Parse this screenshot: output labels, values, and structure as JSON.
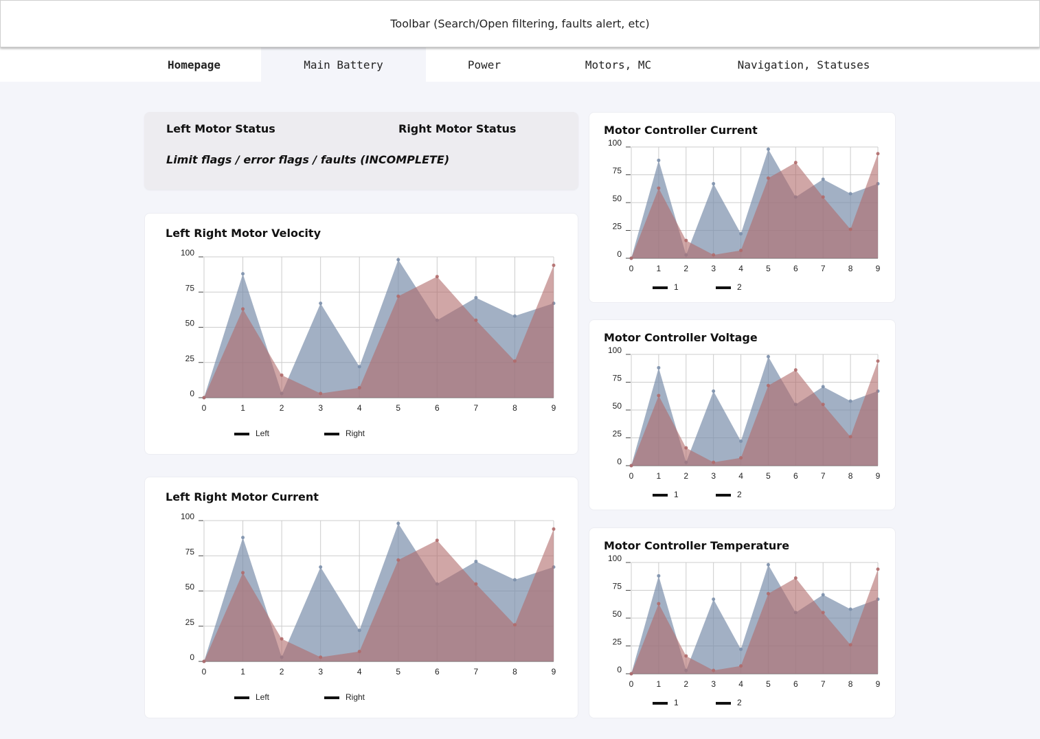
{
  "toolbar": {
    "text": "Toolbar (Search/Open filtering, faults alert, etc)"
  },
  "nav": {
    "tabs": [
      {
        "label": "Homepage",
        "bold": true,
        "active": false
      },
      {
        "label": "Main Battery",
        "bold": false,
        "active": true
      },
      {
        "label": "Power",
        "bold": false,
        "active": false
      },
      {
        "label": "Motors, MC",
        "bold": false,
        "active": false
      },
      {
        "label": "Navigation, Statuses",
        "bold": false,
        "active": false
      }
    ]
  },
  "status": {
    "left_title": "Left Motor Status",
    "right_title": "Right Motor Status",
    "note": "Limit flags / error flags / faults (INCOMPLETE)"
  },
  "colors": {
    "blue_area": "#7b8fab",
    "red_area": "#b06a6a",
    "grid": "#cccccc"
  },
  "chart_data": [
    {
      "type": "area",
      "title": "Left Right Motor Velocity",
      "x": [
        0,
        1,
        2,
        3,
        4,
        5,
        6,
        7,
        8,
        9
      ],
      "ylim": [
        0,
        100
      ],
      "yticks": [
        0,
        25,
        50,
        75,
        100
      ],
      "grid": true,
      "legend": "bottom-left",
      "series": [
        {
          "name": "Left",
          "values": [
            0,
            88,
            3,
            67,
            22,
            98,
            55,
            71,
            58,
            67
          ]
        },
        {
          "name": "Right",
          "values": [
            0,
            63,
            16,
            3,
            7,
            72,
            86,
            55,
            26,
            94
          ]
        }
      ]
    },
    {
      "type": "area",
      "title": "Left Right Motor Current",
      "x": [
        0,
        1,
        2,
        3,
        4,
        5,
        6,
        7,
        8,
        9
      ],
      "ylim": [
        0,
        100
      ],
      "yticks": [
        0,
        25,
        50,
        75,
        100
      ],
      "grid": true,
      "legend": "bottom-left",
      "series": [
        {
          "name": "Left",
          "values": [
            0,
            88,
            3,
            67,
            22,
            98,
            55,
            71,
            58,
            67
          ]
        },
        {
          "name": "Right",
          "values": [
            0,
            63,
            16,
            3,
            7,
            72,
            86,
            55,
            26,
            94
          ]
        }
      ]
    },
    {
      "type": "area",
      "title": "Motor Controller Current",
      "x": [
        0,
        1,
        2,
        3,
        4,
        5,
        6,
        7,
        8,
        9
      ],
      "ylim": [
        0,
        100
      ],
      "yticks": [
        0,
        25,
        50,
        75,
        100
      ],
      "grid": true,
      "legend": "bottom-left",
      "series": [
        {
          "name": "1",
          "values": [
            0,
            88,
            3,
            67,
            22,
            98,
            55,
            71,
            58,
            67
          ]
        },
        {
          "name": "2",
          "values": [
            0,
            63,
            16,
            3,
            7,
            72,
            86,
            55,
            26,
            94
          ]
        }
      ]
    },
    {
      "type": "area",
      "title": "Motor Controller Voltage",
      "x": [
        0,
        1,
        2,
        3,
        4,
        5,
        6,
        7,
        8,
        9
      ],
      "ylim": [
        0,
        100
      ],
      "yticks": [
        0,
        25,
        50,
        75,
        100
      ],
      "grid": true,
      "legend": "bottom-left",
      "series": [
        {
          "name": "1",
          "values": [
            0,
            88,
            3,
            67,
            22,
            98,
            55,
            71,
            58,
            67
          ]
        },
        {
          "name": "2",
          "values": [
            0,
            63,
            16,
            3,
            7,
            72,
            86,
            55,
            26,
            94
          ]
        }
      ]
    },
    {
      "type": "area",
      "title": "Motor Controller Temperature",
      "x": [
        0,
        1,
        2,
        3,
        4,
        5,
        6,
        7,
        8,
        9
      ],
      "ylim": [
        0,
        100
      ],
      "yticks": [
        0,
        25,
        50,
        75,
        100
      ],
      "grid": true,
      "legend": "bottom-left",
      "series": [
        {
          "name": "1",
          "values": [
            0,
            88,
            3,
            67,
            22,
            98,
            55,
            71,
            58,
            67
          ]
        },
        {
          "name": "2",
          "values": [
            0,
            63,
            16,
            3,
            7,
            72,
            86,
            55,
            26,
            94
          ]
        }
      ]
    }
  ]
}
